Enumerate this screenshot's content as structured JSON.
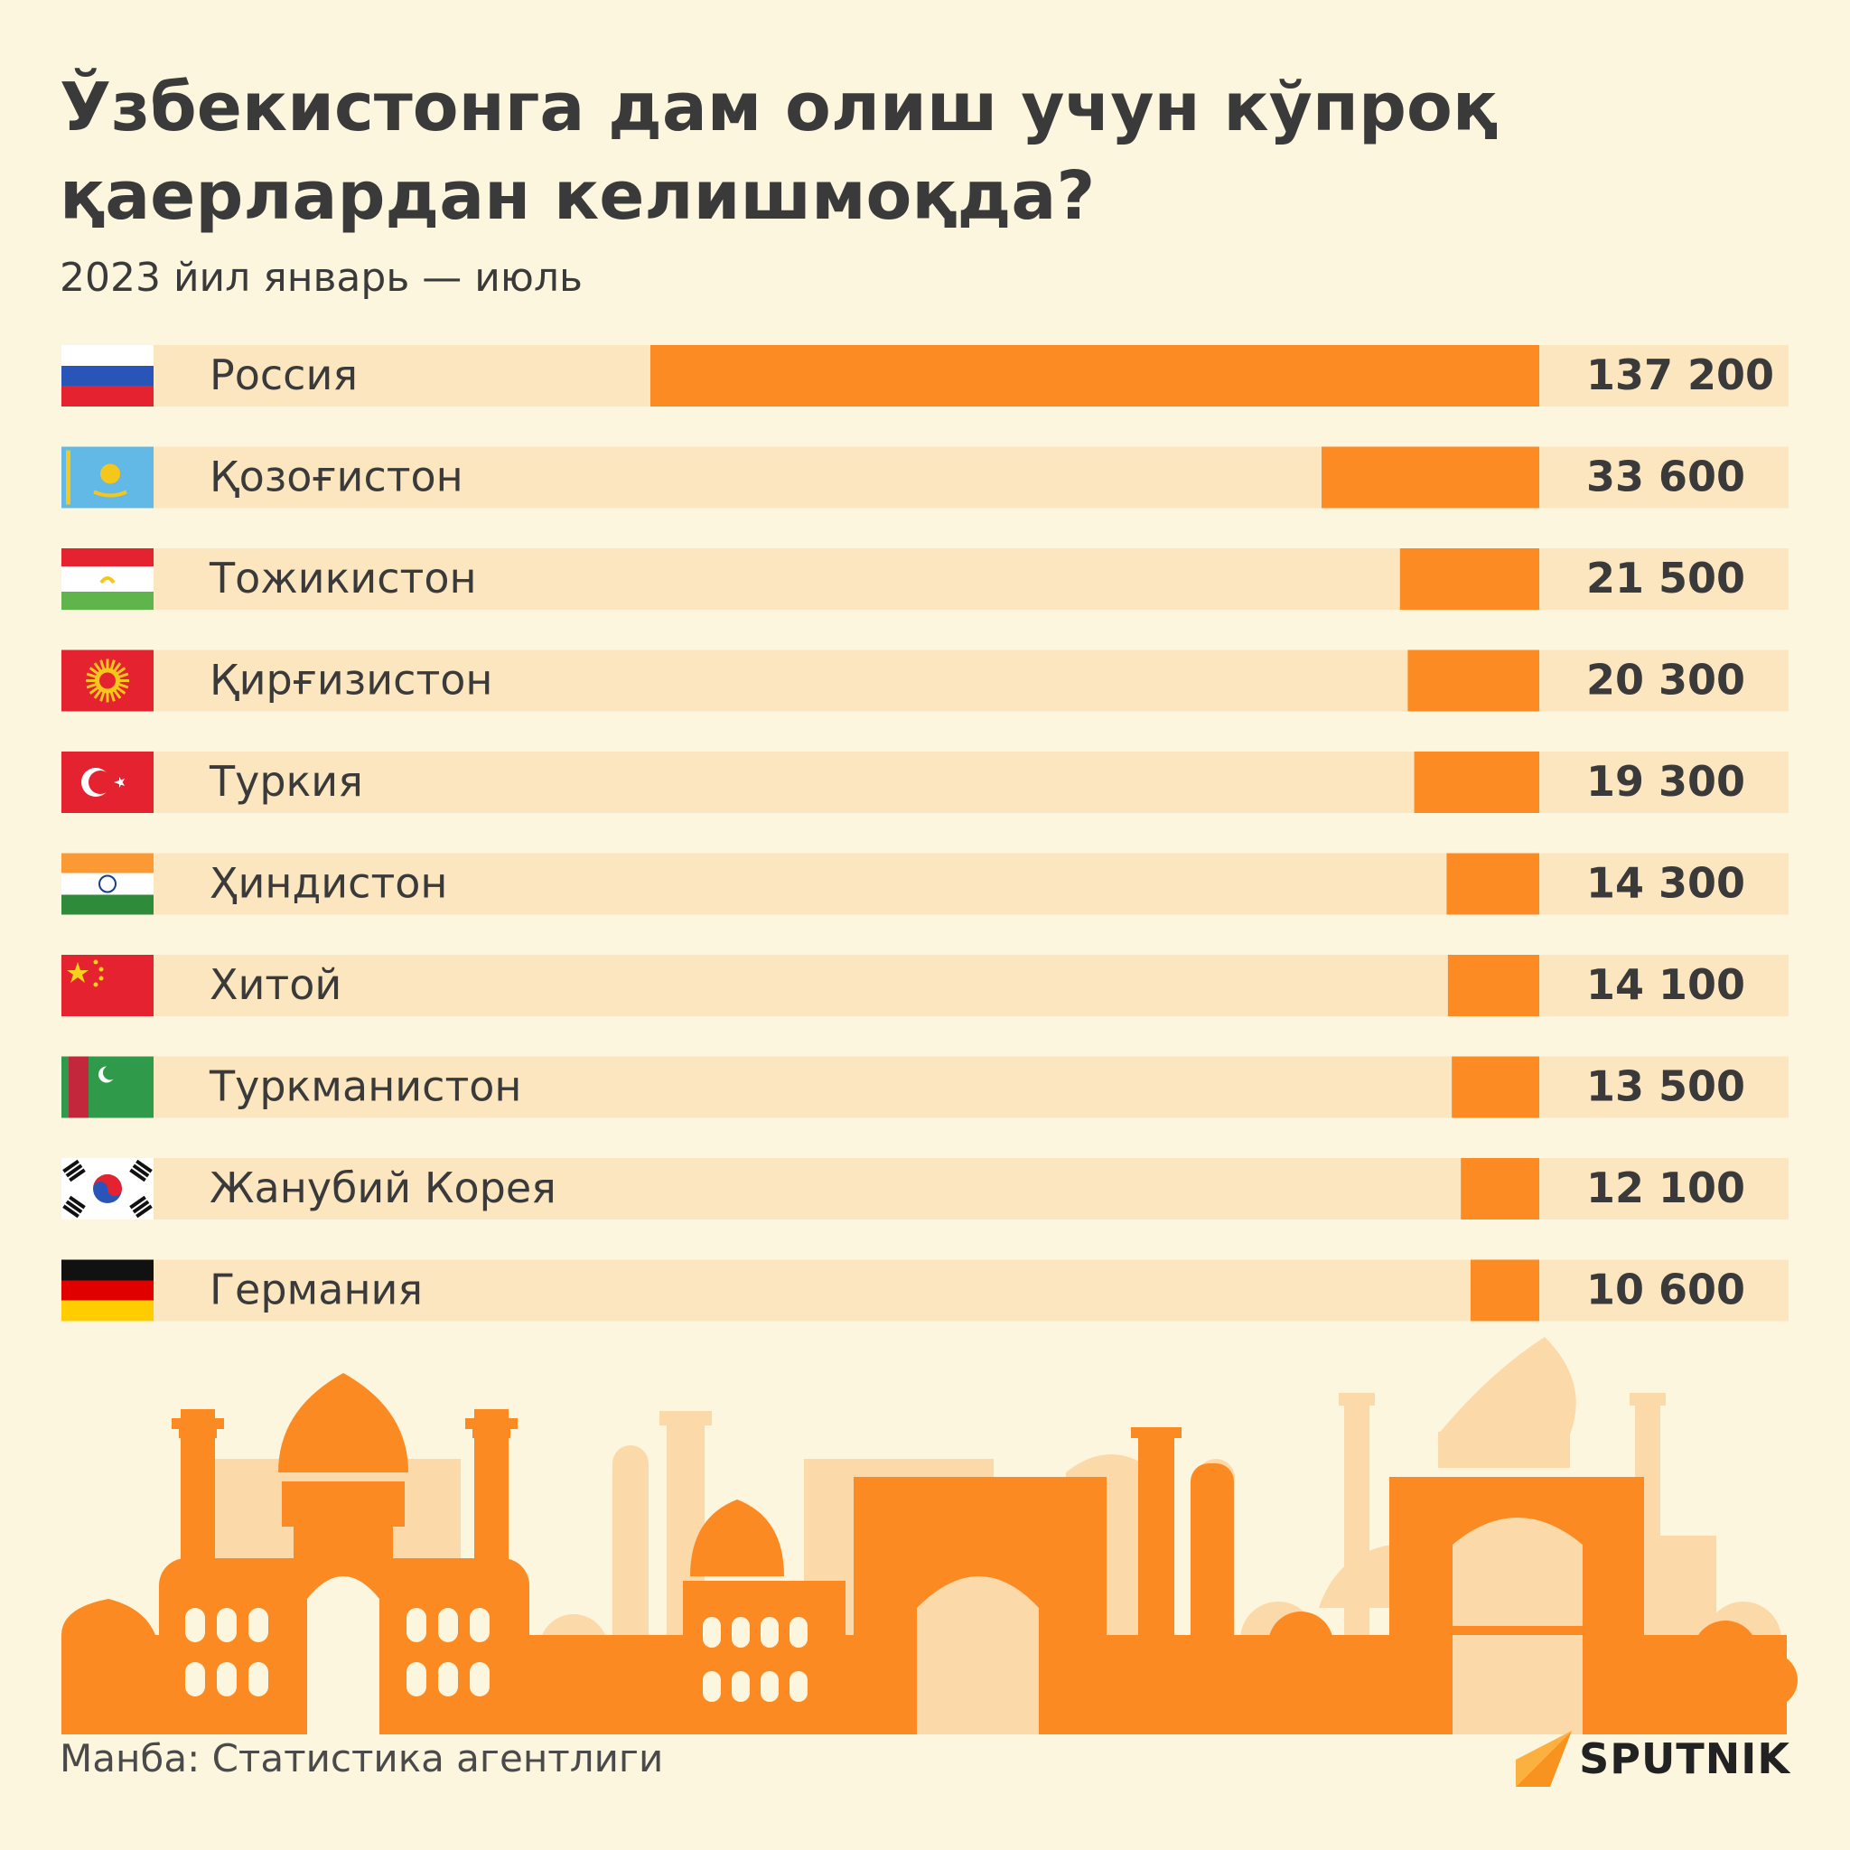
{
  "header": {
    "title": "Ўзбекистонга дам олиш учун кўпроқ қаерлардан келишмоқда?",
    "subtitle": "2023 йил январь — июль"
  },
  "footer": {
    "source": "Манба: Статистика агентлиги",
    "logo_text": "SPUTNIK"
  },
  "colors": {
    "background": "#fdf6df",
    "track": "#fbe6bf",
    "bar": "#fd8b24",
    "skyline_front": "#fc8a23",
    "skyline_back": "#fbd9a8"
  },
  "chart_data": {
    "type": "bar",
    "orientation": "horizontal",
    "title": "Ўзбекистонга дам олиш учун кўпроқ қаерлардан келишмоқда?",
    "subtitle": "2023 йил январь — июль",
    "categories": [
      "Россия",
      "Қозоғистон",
      "Тожикистон",
      "Қирғизистон",
      "Туркия",
      "Ҳиндистон",
      "Хитой",
      "Туркманистон",
      "Жанубий Корея",
      "Германия"
    ],
    "values": [
      137200,
      33600,
      21500,
      20300,
      19300,
      14300,
      14100,
      13500,
      12100,
      10600
    ],
    "value_labels": [
      "137 200",
      "33 600",
      "21 500",
      "20 300",
      "19 300",
      "14 300",
      "14 100",
      "13 500",
      "12 100",
      "10 600"
    ],
    "flags": [
      "russia-flag",
      "kazakhstan-flag",
      "tajikistan-flag",
      "kyrgyzstan-flag",
      "turkey-flag",
      "india-flag",
      "china-flag",
      "turkmenistan-flag",
      "south-korea-flag",
      "germany-flag"
    ],
    "xlim": [
      0,
      137200
    ],
    "bar_alignment": "right",
    "grid": false,
    "legend": "none"
  }
}
